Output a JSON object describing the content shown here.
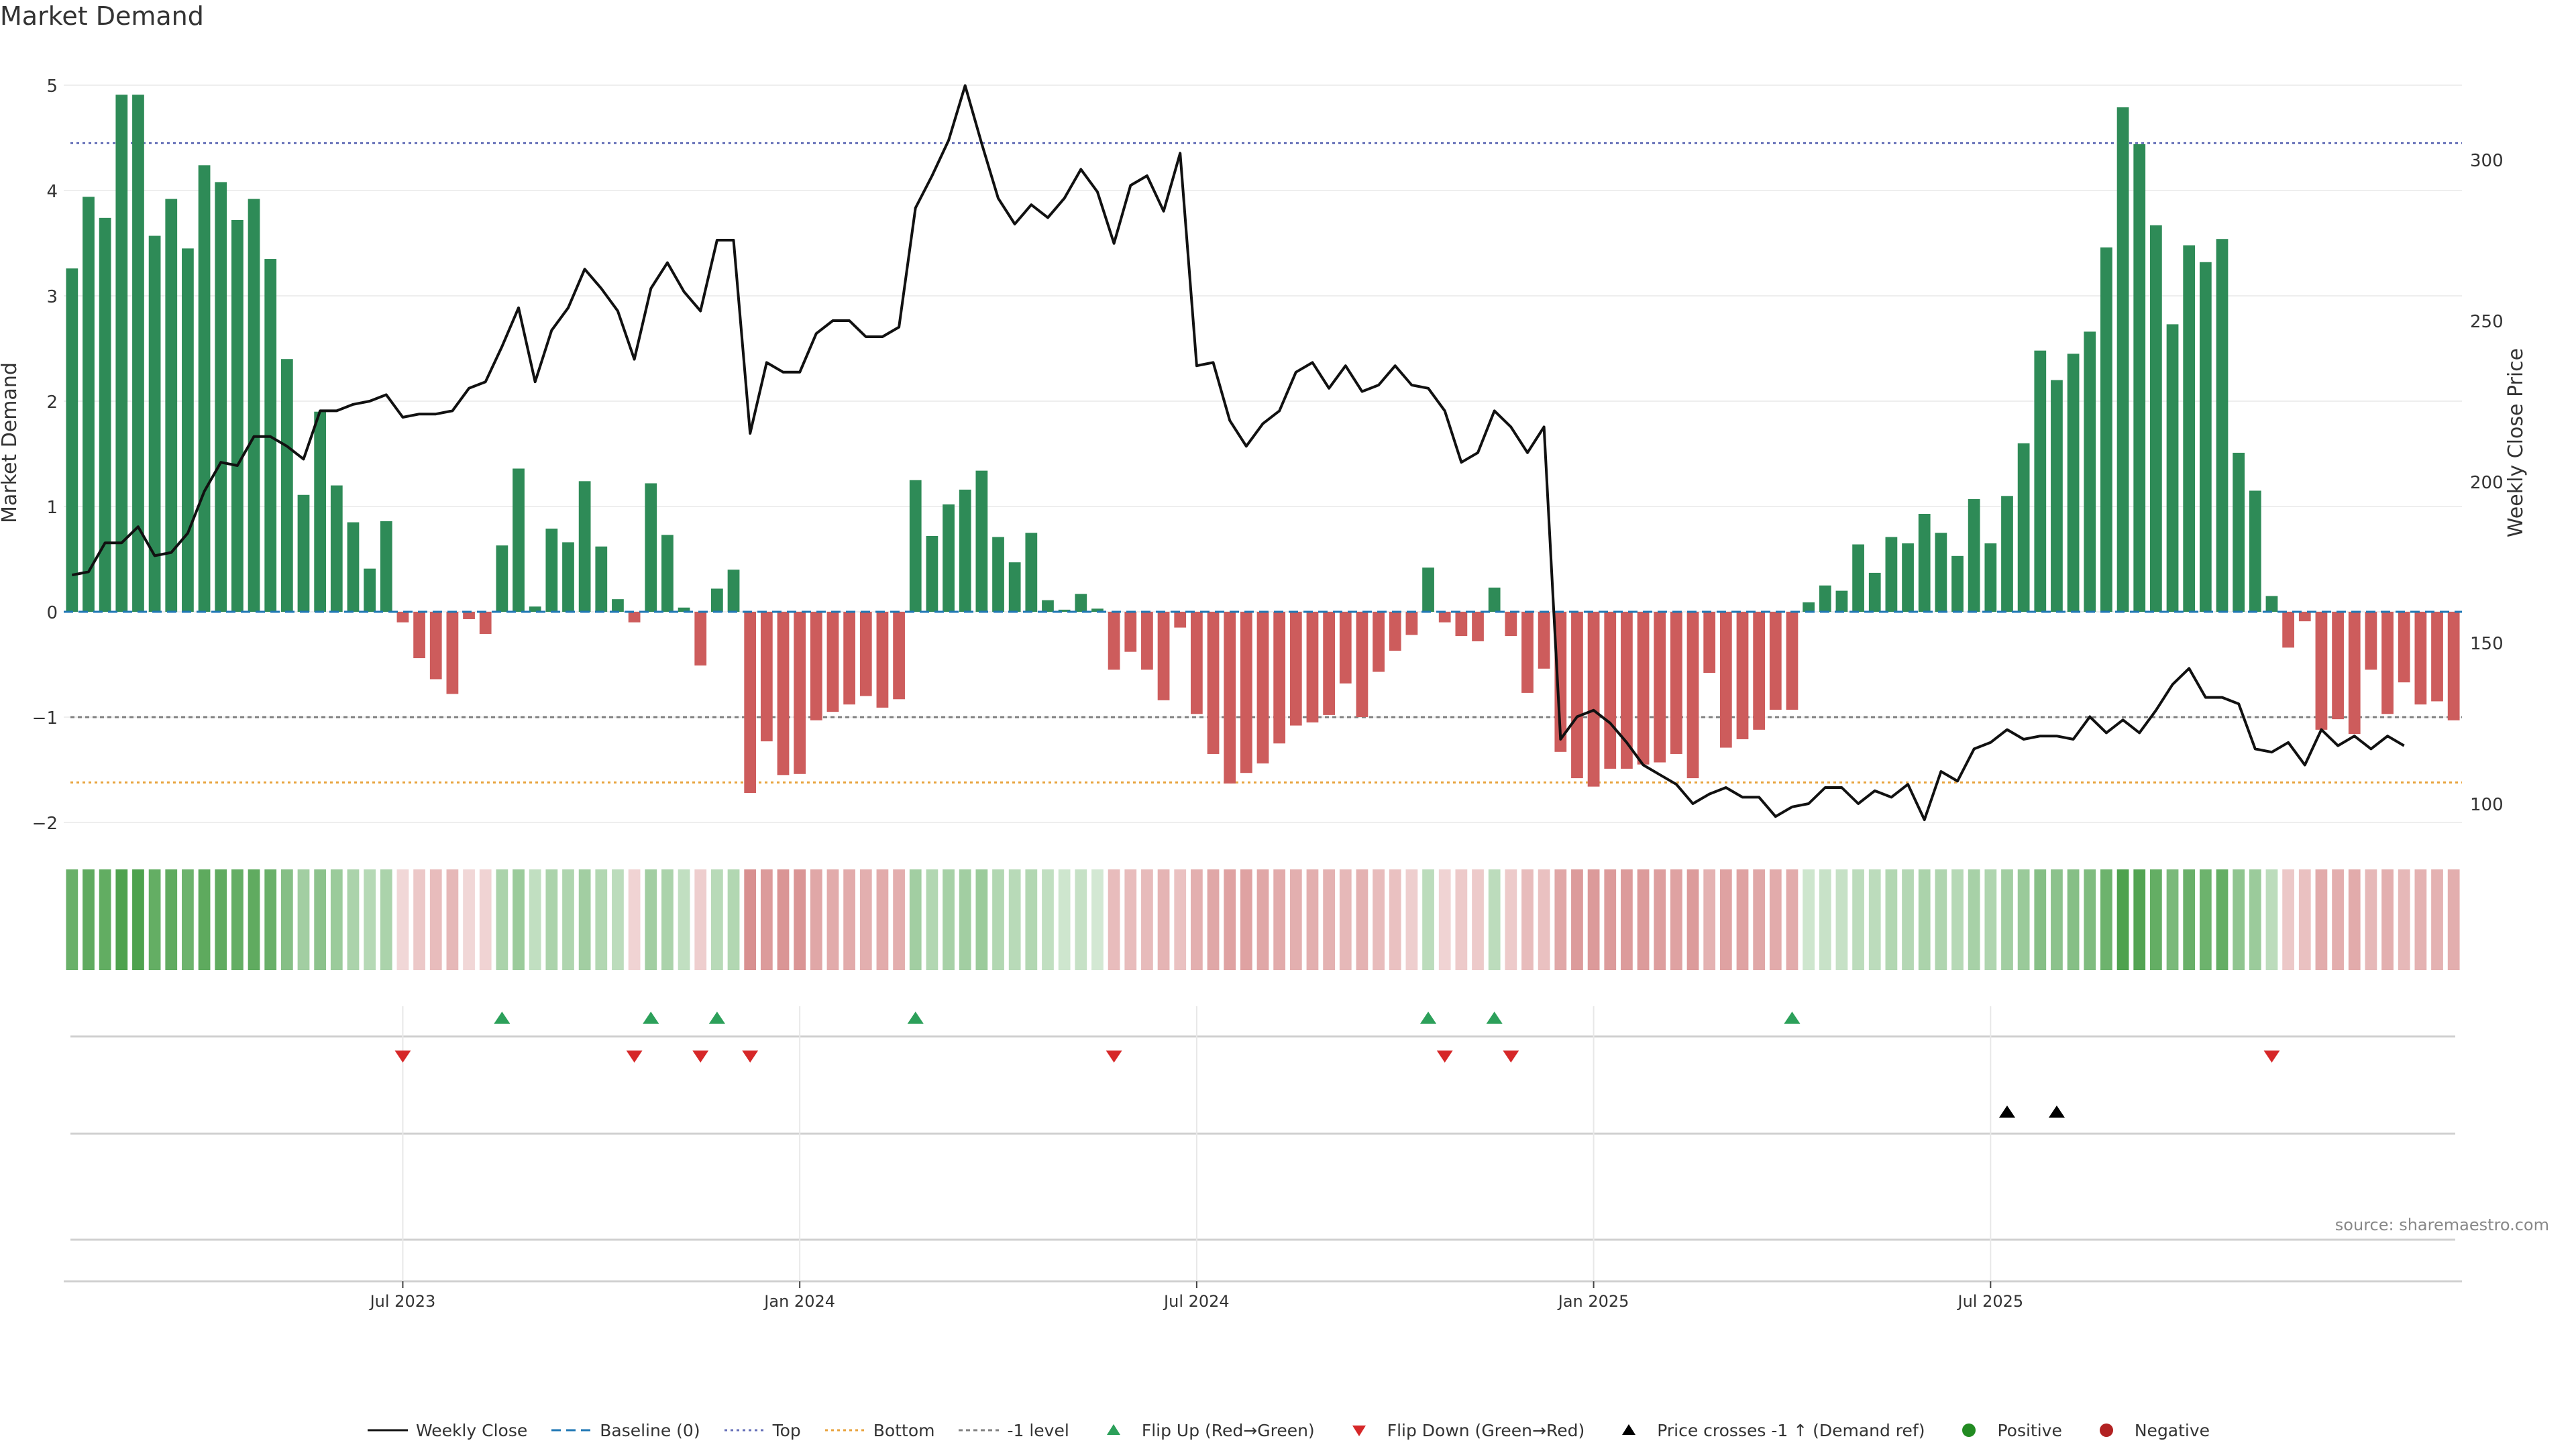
{
  "chart_data": {
    "type": "bar+line",
    "title": "Market Demand",
    "ylabel": "Market Demand",
    "y2label": "Weekly Close Price",
    "ylim": [
      -2.3,
      5.2
    ],
    "y2lim": [
      94,
      330
    ],
    "yticks": [
      "5",
      "4",
      "3",
      "2",
      "1",
      "0",
      "−1",
      "−2"
    ],
    "y2ticks": [
      "300",
      "250",
      "200",
      "150",
      "100"
    ],
    "xticks": [
      "Jul 2023",
      "Jan 2024",
      "Jul 2024",
      "Jan 2025",
      "Jul 2025"
    ],
    "levels": {
      "top": 4.45,
      "minus_one": -1.0,
      "bottom": -1.62
    },
    "demand": [
      3.26,
      3.94,
      3.74,
      4.91,
      4.91,
      3.57,
      3.92,
      3.45,
      4.24,
      4.08,
      3.72,
      3.92,
      3.35,
      2.4,
      1.11,
      1.9,
      1.2,
      0.85,
      0.41,
      0.86,
      -0.1,
      -0.44,
      -0.64,
      -0.78,
      -0.07,
      -0.21,
      0.63,
      1.36,
      0.05,
      0.79,
      0.66,
      1.24,
      0.62,
      0.12,
      -0.1,
      1.22,
      0.73,
      0.04,
      -0.51,
      0.22,
      0.4,
      -1.72,
      -1.23,
      -1.55,
      -1.54,
      -1.03,
      -0.95,
      -0.88,
      -0.8,
      -0.91,
      -0.83,
      1.25,
      0.72,
      1.02,
      1.16,
      1.34,
      0.71,
      0.47,
      0.75,
      0.11,
      0.02,
      0.17,
      0.03,
      -0.55,
      -0.38,
      -0.55,
      -0.84,
      -0.15,
      -0.97,
      -1.35,
      -1.63,
      -1.53,
      -1.44,
      -1.25,
      -1.08,
      -1.05,
      -0.98,
      -0.68,
      -1.0,
      -0.57,
      -0.37,
      -0.22,
      0.42,
      -0.1,
      -0.23,
      -0.28,
      0.23,
      -0.23,
      -0.77,
      -0.54,
      -1.33,
      -1.58,
      -1.66,
      -1.49,
      -1.49,
      -1.45,
      -1.43,
      -1.35,
      -1.58,
      -0.58,
      -1.29,
      -1.21,
      -1.12,
      -0.93,
      -0.93,
      0.09,
      0.25,
      0.2,
      0.64,
      0.37,
      0.71,
      0.65,
      0.93,
      0.75,
      0.53,
      1.07,
      0.65,
      1.1,
      1.6,
      2.48,
      2.2,
      2.45,
      2.66,
      3.46,
      4.79,
      4.44,
      3.67,
      2.73,
      3.48,
      3.32,
      3.54,
      1.51,
      1.15,
      0.15,
      -0.34,
      -0.09,
      -1.12,
      -1.02,
      -1.16,
      -0.55,
      -0.97,
      -0.67,
      -0.88,
      -0.85,
      -1.03
    ],
    "weekly_close": [
      171,
      172,
      181,
      181,
      186,
      177,
      178,
      184,
      197,
      206,
      205,
      214,
      214,
      211,
      207,
      222,
      222,
      224,
      225,
      227,
      220,
      221,
      221,
      222,
      229,
      231,
      242,
      254,
      231,
      247,
      254,
      266,
      260,
      253,
      238,
      260,
      268,
      259,
      253,
      275,
      275,
      215,
      237,
      234,
      234,
      246,
      250,
      250,
      245,
      245,
      248,
      285,
      295,
      306,
      323,
      305,
      288,
      280,
      286,
      282,
      288,
      297,
      290,
      274,
      292,
      295,
      284,
      302,
      236,
      237,
      219,
      211,
      218,
      222,
      234,
      237,
      229,
      236,
      228,
      230,
      236,
      230,
      229,
      222,
      206,
      209,
      222,
      217,
      209,
      217,
      120,
      127,
      129,
      125,
      119,
      112,
      109,
      106,
      100,
      103,
      105,
      102,
      102,
      96,
      99,
      100,
      105,
      105,
      100,
      104,
      102,
      106,
      95,
      110,
      107,
      117,
      119,
      123,
      120,
      121,
      121,
      120,
      127,
      122,
      126,
      122,
      129,
      137,
      142,
      133,
      133,
      131,
      117,
      116,
      119,
      112,
      123,
      118,
      121,
      117,
      121,
      118
    ],
    "baseline": 0,
    "crowding_strength": [
      0.68,
      0.72,
      0.71,
      0.8,
      0.8,
      0.7,
      0.72,
      0.66,
      0.73,
      0.72,
      0.7,
      0.72,
      0.68,
      0.55,
      0.42,
      0.52,
      0.45,
      0.38,
      0.33,
      0.38,
      0.18,
      0.25,
      0.3,
      0.32,
      0.18,
      0.2,
      0.38,
      0.45,
      0.28,
      0.38,
      0.36,
      0.42,
      0.35,
      0.3,
      0.2,
      0.42,
      0.38,
      0.28,
      0.22,
      0.32,
      0.35,
      0.5,
      0.45,
      0.48,
      0.48,
      0.4,
      0.38,
      0.38,
      0.36,
      0.38,
      0.37,
      0.42,
      0.35,
      0.4,
      0.42,
      0.45,
      0.35,
      0.32,
      0.35,
      0.28,
      0.22,
      0.26,
      0.2,
      0.3,
      0.3,
      0.31,
      0.34,
      0.28,
      0.36,
      0.4,
      0.42,
      0.42,
      0.4,
      0.38,
      0.36,
      0.36,
      0.35,
      0.32,
      0.35,
      0.3,
      0.28,
      0.22,
      0.3,
      0.2,
      0.24,
      0.24,
      0.3,
      0.24,
      0.3,
      0.28,
      0.4,
      0.45,
      0.46,
      0.45,
      0.45,
      0.45,
      0.44,
      0.42,
      0.45,
      0.35,
      0.42,
      0.42,
      0.4,
      0.38,
      0.38,
      0.22,
      0.25,
      0.26,
      0.3,
      0.3,
      0.35,
      0.34,
      0.38,
      0.36,
      0.33,
      0.4,
      0.36,
      0.42,
      0.46,
      0.55,
      0.52,
      0.55,
      0.58,
      0.66,
      0.8,
      0.78,
      0.7,
      0.6,
      0.68,
      0.66,
      0.7,
      0.5,
      0.45,
      0.3,
      0.25,
      0.28,
      0.38,
      0.37,
      0.38,
      0.32,
      0.36,
      0.32,
      0.35,
      0.35,
      0.37
    ],
    "flip_up_weeks": [
      26,
      35,
      39,
      51,
      82,
      86,
      104
    ],
    "flip_down_weeks": [
      20,
      34,
      38,
      41,
      63,
      83,
      87,
      133
    ],
    "price_cross_weeks": [
      117,
      120
    ],
    "legend": [
      "Weekly Close",
      "Baseline (0)",
      "Top",
      "Bottom",
      "-1 level",
      "Flip Up (Red→Green)",
      "Flip Down (Green→Red)",
      "Price crosses -1 ↑ (Demand ref)",
      "Positive",
      "Negative"
    ],
    "colors": {
      "positive": "#2e8b57",
      "negative": "#cd5c5c",
      "close": "#111111",
      "baseline": "#1f77b4",
      "top": "#6670b8",
      "bottom": "#e8a33d",
      "minus_one": "#808080",
      "flip_up": "#2ca05a",
      "flip_down": "#d62728",
      "price_cross": "#000000",
      "pos_dot": "#228b22",
      "neg_dot": "#b22222"
    },
    "source": "source: sharemaestro.com"
  }
}
